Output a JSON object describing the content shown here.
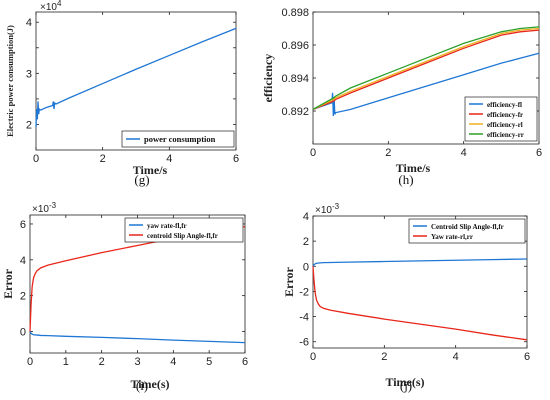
{
  "chart_data": [
    {
      "id": "g",
      "type": "line",
      "caption": "(g)",
      "xlabel": "Time/s",
      "ylabel": "Electric power consumption(J)",
      "exponent_label": "×10",
      "exponent_power": "4",
      "xlim": [
        0,
        6
      ],
      "ylim": [
        1.5,
        4.2
      ],
      "xticks": [
        0,
        2,
        4,
        6
      ],
      "yticks": [
        2,
        2.5,
        3,
        3.5,
        4
      ],
      "yticklabels": [
        "2",
        "",
        "3",
        "",
        "4"
      ],
      "legend_position": "bottom-right",
      "series": [
        {
          "name": "power consumption",
          "color": "#1f77d4",
          "x": [
            0,
            0.02,
            0.04,
            0.06,
            0.08,
            0.1,
            0.15,
            0.2,
            0.3,
            0.5,
            0.52,
            0.54,
            0.56,
            0.6,
            1,
            2,
            3,
            4,
            5,
            6
          ],
          "y": [
            1.95,
            2.3,
            2.1,
            2.45,
            2.2,
            2.3,
            2.28,
            2.3,
            2.33,
            2.37,
            2.45,
            2.3,
            2.42,
            2.4,
            2.52,
            2.8,
            3.08,
            3.35,
            3.62,
            3.88
          ]
        }
      ]
    },
    {
      "id": "h",
      "type": "line",
      "caption": "(h)",
      "xlabel": "Time/s",
      "ylabel": "efficiency",
      "xlim": [
        0,
        6
      ],
      "ylim": [
        0.89,
        0.898
      ],
      "xticks": [
        0,
        2,
        4,
        6
      ],
      "yticks": [
        0.892,
        0.894,
        0.896,
        0.898
      ],
      "yticklabels": [
        "0.892",
        "0.894",
        "0.896",
        "0.898"
      ],
      "legend_position": "bottom-right",
      "series": [
        {
          "name": "efficiency-fl",
          "color": "#1f77d4",
          "x": [
            0,
            0.5,
            0.52,
            0.54,
            0.56,
            0.58,
            0.6,
            1,
            2,
            3,
            4,
            5,
            6
          ],
          "y": [
            0.8921,
            0.8925,
            0.8931,
            0.8917,
            0.8928,
            0.8918,
            0.8919,
            0.8921,
            0.8928,
            0.8935,
            0.8942,
            0.8949,
            0.8955
          ]
        },
        {
          "name": "efficiency-fr",
          "color": "#e8271a",
          "x": [
            0,
            0.55,
            0.6,
            1,
            2,
            3,
            4,
            5,
            5.5,
            6
          ],
          "y": [
            0.8921,
            0.8926,
            0.8927,
            0.8931,
            0.894,
            0.8949,
            0.8958,
            0.8966,
            0.8968,
            0.8969
          ]
        },
        {
          "name": "efficiency-rl",
          "color": "#edb120",
          "x": [
            0,
            0.55,
            0.6,
            1,
            2,
            3,
            4,
            5,
            5.5,
            6
          ],
          "y": [
            0.8921,
            0.8927,
            0.8928,
            0.8932,
            0.8941,
            0.895,
            0.8959,
            0.8967,
            0.8969,
            0.897
          ]
        },
        {
          "name": "efficiency-rr",
          "color": "#2ca02c",
          "x": [
            0,
            0.55,
            0.6,
            1,
            2,
            3,
            4,
            5,
            5.5,
            6
          ],
          "y": [
            0.8921,
            0.8928,
            0.8929,
            0.8934,
            0.8943,
            0.8952,
            0.8961,
            0.8968,
            0.897,
            0.8971
          ]
        }
      ]
    },
    {
      "id": "i",
      "type": "line",
      "caption": "(i)",
      "xlabel": "Time(s)",
      "ylabel": "Error",
      "exponent_label": "×10",
      "exponent_power": "-3",
      "xlim": [
        0,
        6
      ],
      "ylim": [
        -1.2,
        6.5
      ],
      "xticks": [
        0,
        1,
        2,
        3,
        4,
        5,
        6
      ],
      "yticks": [
        0,
        2,
        4,
        6
      ],
      "yticklabels": [
        "0",
        "2",
        "4",
        "6"
      ],
      "legend_position": "top-right",
      "series": [
        {
          "name": "yaw rate-fl,fr",
          "color": "#1f77d4",
          "x": [
            0,
            0.03,
            0.06,
            0.1,
            0.2,
            0.3,
            0.5,
            1,
            2,
            3,
            4,
            5,
            6
          ],
          "y": [
            0,
            -0.1,
            -0.15,
            -0.18,
            -0.2,
            -0.22,
            -0.23,
            -0.27,
            -0.33,
            -0.4,
            -0.48,
            -0.55,
            -0.62
          ]
        },
        {
          "name": "centroid Slip Angle-fl,fr",
          "color": "#e8271a",
          "x": [
            0,
            0.03,
            0.06,
            0.1,
            0.15,
            0.2,
            0.3,
            0.5,
            1,
            2,
            3,
            4,
            5,
            6
          ],
          "y": [
            0,
            1.5,
            2.5,
            3.0,
            3.25,
            3.4,
            3.55,
            3.7,
            3.95,
            4.4,
            4.8,
            5.2,
            5.55,
            5.85
          ]
        }
      ]
    },
    {
      "id": "j",
      "type": "line",
      "caption": "(j)",
      "xlabel": "Time(s)",
      "ylabel": "Error",
      "exponent_label": "×10",
      "exponent_power": "-3",
      "xlim": [
        0,
        6
      ],
      "ylim": [
        -6.5,
        4
      ],
      "xticks": [
        0,
        2,
        4,
        6
      ],
      "yticks": [
        -6,
        -4,
        -2,
        0,
        2,
        4
      ],
      "yticklabels": [
        "-6",
        "-4",
        "-2",
        "0",
        "2",
        "4"
      ],
      "legend_position": "top-right",
      "series": [
        {
          "name": "Centroid Slip Angle-fl,fr",
          "color": "#1f77d4",
          "x": [
            0,
            0.03,
            0.06,
            0.1,
            0.2,
            0.3,
            0.5,
            1,
            2,
            3,
            4,
            5,
            6
          ],
          "y": [
            0,
            0.12,
            0.2,
            0.24,
            0.27,
            0.29,
            0.3,
            0.33,
            0.38,
            0.43,
            0.48,
            0.53,
            0.58
          ]
        },
        {
          "name": "Yaw rate-rl,rr",
          "color": "#e8271a",
          "x": [
            0,
            0.03,
            0.06,
            0.1,
            0.15,
            0.2,
            0.3,
            0.5,
            1,
            2,
            3,
            4,
            5,
            6
          ],
          "y": [
            0,
            -1.2,
            -2.1,
            -2.7,
            -3.0,
            -3.2,
            -3.35,
            -3.5,
            -3.75,
            -4.2,
            -4.6,
            -5.0,
            -5.45,
            -5.85
          ]
        }
      ]
    }
  ]
}
